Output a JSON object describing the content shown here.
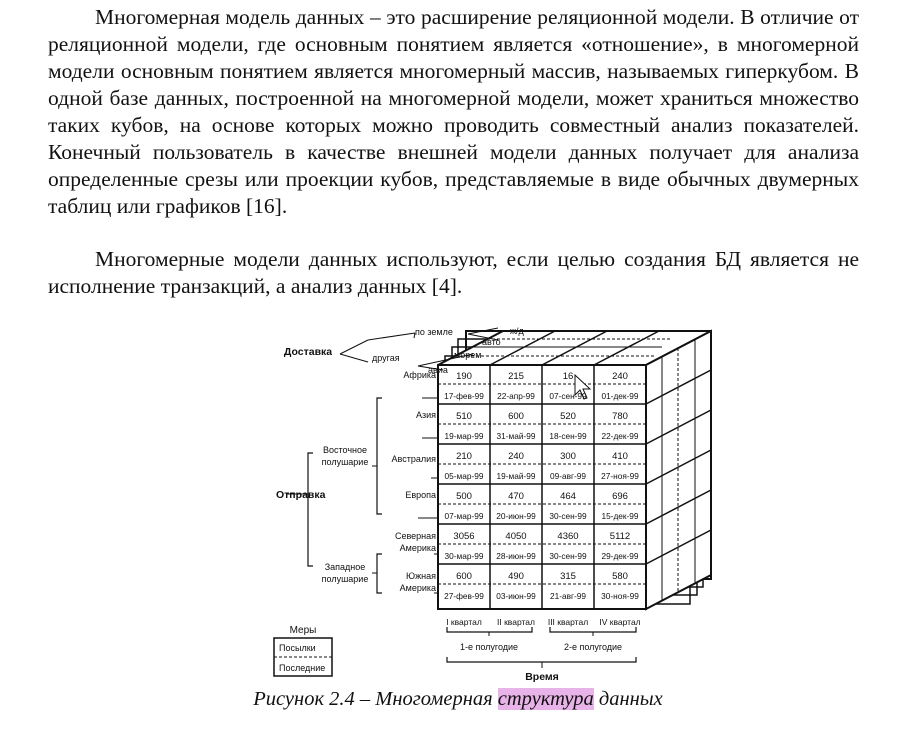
{
  "text": {
    "paragraph1": "Многомерная модель данных – это расширение реляционной модели. В отличие от реляционной модели, где основным понятием является «отношение», в многомерной модели основным понятием является многомерный массив, называемых гиперкубом. В одной базе данных, построенной на многомерной модели, может храниться множество таких кубов, на основе которых можно проводить совместный анализ показателей. Конечный пользователь в качестве внешней модели данных получает для анализа определенные срезы или проекции кубов, представляемые в виде обычных двумерных таблиц или графиков [16].",
    "paragraph2": "Многомерные модели данных используют, если целью создания БД является не исполнение транзакций, а анализ данных [4]."
  },
  "caption": {
    "before": "Рисунок 2.4 – Многомерная ",
    "highlighted": "структура",
    "after": " данных",
    "highlight_color": "#e7b3e8"
  },
  "figure": {
    "delivery": {
      "label": "Доставка",
      "options": [
        "по земле",
        "ж/д",
        "авто",
        "другая",
        "морем",
        "авиа"
      ]
    },
    "shipment": {
      "label": "Отправка",
      "east_hemisphere": [
        "Восточное",
        "полушарие"
      ],
      "west_hemisphere": [
        "Западное",
        "полушарие"
      ]
    },
    "regions": [
      {
        "label": [
          "Африка"
        ],
        "values": [
          "190",
          "215",
          "16",
          "240"
        ],
        "dates": [
          "17-фев-99",
          "22-апр-99",
          "07-сен-99",
          "01-дек-99"
        ]
      },
      {
        "label": [
          "Азия"
        ],
        "values": [
          "510",
          "600",
          "520",
          "780"
        ],
        "dates": [
          "19-мар-99",
          "31-май-99",
          "18-сен-99",
          "22-дек-99"
        ]
      },
      {
        "label": [
          "Австралия"
        ],
        "values": [
          "210",
          "240",
          "300",
          "410"
        ],
        "dates": [
          "05-мар-99",
          "19-май-99",
          "09-авг-99",
          "27-ноя-99"
        ]
      },
      {
        "label": [
          "Европа"
        ],
        "values": [
          "500",
          "470",
          "464",
          "696"
        ],
        "dates": [
          "07-мар-99",
          "20-июн-99",
          "30-сен-99",
          "15-дек-99"
        ]
      },
      {
        "label": [
          "Северная",
          "Америка"
        ],
        "values": [
          "3056",
          "4050",
          "4360",
          "5112"
        ],
        "dates": [
          "30-мар-99",
          "28-июн-99",
          "30-сен-99",
          "29-дек-99"
        ]
      },
      {
        "label": [
          "Южная",
          "Америка"
        ],
        "values": [
          "600",
          "490",
          "315",
          "580"
        ],
        "dates": [
          "27-фев-99",
          "03-июн-99",
          "21-авг-99",
          "30-ноя-99"
        ]
      }
    ],
    "quarters": [
      "I квартал",
      "II квартал",
      "III квартал",
      "IV квартал"
    ],
    "halves": [
      "1-е полугодие",
      "2-е полугодие"
    ],
    "time_label": "Время",
    "measures": {
      "title": "Меры",
      "items": [
        "Посылки",
        "Последние"
      ]
    }
  }
}
